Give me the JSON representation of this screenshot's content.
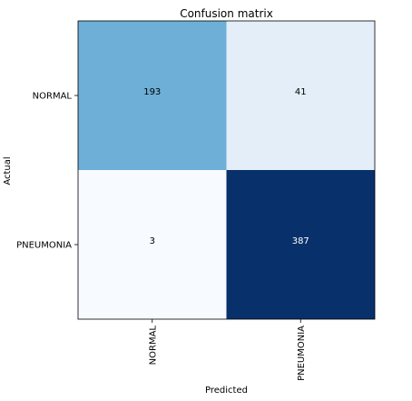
{
  "chart_data": {
    "type": "heatmap",
    "title": "Confusion matrix",
    "xlabel": "Predicted",
    "ylabel": "Actual",
    "x_categories": [
      "NORMAL",
      "PNEUMONIA"
    ],
    "y_categories": [
      "NORMAL",
      "PNEUMONIA"
    ],
    "values": [
      [
        193,
        41
      ],
      [
        3,
        387
      ]
    ],
    "colormap": "Blues",
    "colors": {
      "low": "#f7fbff",
      "high": "#08306b",
      "text_on_dark": "#ffffff",
      "text_on_light": "#000000"
    },
    "x_tick_rotation": "vertical",
    "grid": false,
    "colorbar": false
  }
}
